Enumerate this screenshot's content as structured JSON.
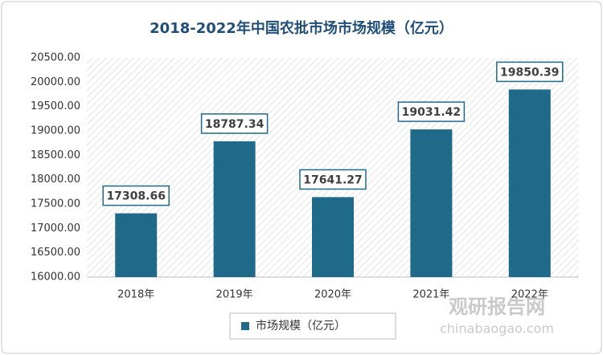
{
  "chart_data": {
    "type": "bar",
    "title": "2018-2022年中国农批市场市场规模（亿元）",
    "categories": [
      "2018年",
      "2019年",
      "2020年",
      "2021年",
      "2022年"
    ],
    "series": [
      {
        "name": "市场规模（亿元）",
        "color": "#1f6a89",
        "values": [
          17308.66,
          18787.34,
          17641.27,
          19031.42,
          19850.39
        ]
      }
    ],
    "ylim": [
      16000,
      20500
    ],
    "yticks": [
      {
        "value": 16000,
        "label": "16000.00"
      },
      {
        "value": 16500,
        "label": "16500.00"
      },
      {
        "value": 17000,
        "label": "17000.00"
      },
      {
        "value": 17500,
        "label": "17500.00"
      },
      {
        "value": 18000,
        "label": "18000.00"
      },
      {
        "value": 18500,
        "label": "18500.00"
      },
      {
        "value": 19000,
        "label": "19000.00"
      },
      {
        "value": 19500,
        "label": "19500.00"
      },
      {
        "value": 20000,
        "label": "20000.00"
      },
      {
        "value": 20500,
        "label": "20500.00"
      }
    ],
    "grid": false,
    "legend": "bottom"
  },
  "watermark": {
    "name": "观研报告网",
    "url": "chinabaogao.com"
  }
}
